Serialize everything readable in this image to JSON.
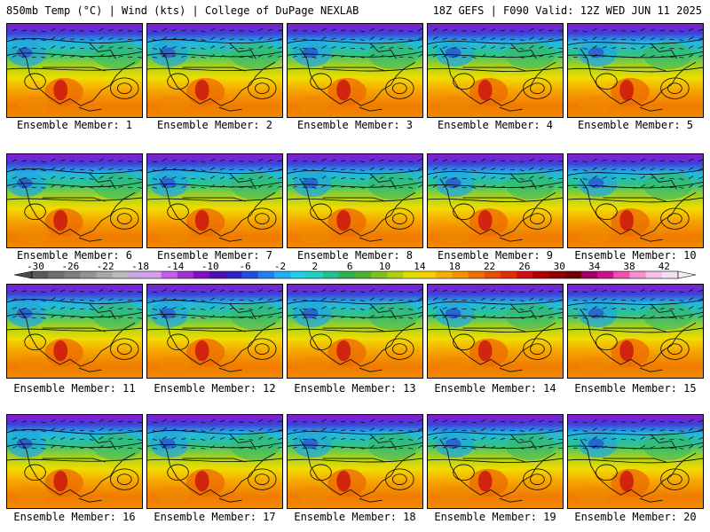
{
  "header": {
    "title_left": "850mb Temp (°C) | Wind (kts) | College of DuPage NEXLAB",
    "title_right": "18Z GEFS | F090 Valid: 12Z WED JUN 11 2025"
  },
  "members": [
    {
      "label": "Ensemble Member: 1"
    },
    {
      "label": "Ensemble Member: 2"
    },
    {
      "label": "Ensemble Member: 3"
    },
    {
      "label": "Ensemble Member: 4"
    },
    {
      "label": "Ensemble Member: 5"
    },
    {
      "label": "Ensemble Member: 6"
    },
    {
      "label": "Ensemble Member: 7"
    },
    {
      "label": "Ensemble Member: 8"
    },
    {
      "label": "Ensemble Member: 9"
    },
    {
      "label": "Ensemble Member: 10"
    },
    {
      "label": "Ensemble Member: 11"
    },
    {
      "label": "Ensemble Member: 12"
    },
    {
      "label": "Ensemble Member: 13"
    },
    {
      "label": "Ensemble Member: 14"
    },
    {
      "label": "Ensemble Member: 15"
    },
    {
      "label": "Ensemble Member: 16"
    },
    {
      "label": "Ensemble Member: 17"
    },
    {
      "label": "Ensemble Member: 18"
    },
    {
      "label": "Ensemble Member: 19"
    },
    {
      "label": "Ensemble Member: 20"
    }
  ],
  "colorbar": {
    "ticks": [
      "-30",
      "-26",
      "-22",
      "-18",
      "-14",
      "-10",
      "-6",
      "-2",
      "2",
      "6",
      "10",
      "14",
      "18",
      "22",
      "26",
      "30",
      "34",
      "38",
      "42"
    ],
    "colors": [
      "#5a5a5a",
      "#6e6e6e",
      "#808080",
      "#949494",
      "#a8a8a8",
      "#bcbcbc",
      "#c9a6e0",
      "#d8a0ea",
      "#c060e8",
      "#a030d0",
      "#8010c0",
      "#5010b0",
      "#3020c8",
      "#2050e0",
      "#2080f0",
      "#20b0f0",
      "#20d0e8",
      "#20d0c0",
      "#20c090",
      "#30b050",
      "#50b030",
      "#80c020",
      "#b0d010",
      "#e0e000",
      "#f8d000",
      "#f8b000",
      "#f89000",
      "#f07000",
      "#e85000",
      "#e03000",
      "#d01010",
      "#b00000",
      "#900000",
      "#700000",
      "#a00060",
      "#d01090",
      "#f050b0",
      "#f890d0",
      "#f8c0e8",
      "#f0e0f0"
    ]
  }
}
